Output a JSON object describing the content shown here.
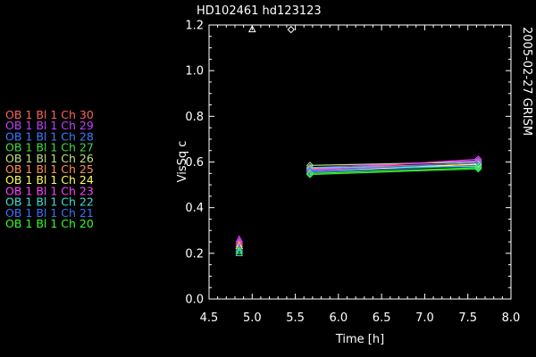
{
  "chart_data": {
    "type": "scatter",
    "title": "HD102461 hd123123",
    "xlabel": "Time [h]",
    "ylabel": "VisSq c",
    "side_label": "2005-02-27 GRISM",
    "xlim": [
      4.5,
      8.0
    ],
    "ylim": [
      0.0,
      1.2
    ],
    "xticks": [
      "4.5",
      "5.0",
      "5.5",
      "6.0",
      "6.5",
      "7.0",
      "7.5",
      "8.0"
    ],
    "yticks": [
      "0.0",
      "0.2",
      "0.4",
      "0.6",
      "0.8",
      "1.0",
      "1.2"
    ],
    "grid": false,
    "legend_position": "left",
    "calibrators": [
      {
        "x": 5.0,
        "y": 1.18,
        "marker": "triangle"
      },
      {
        "x": 5.45,
        "y": 1.18,
        "marker": "diamond"
      }
    ],
    "series": [
      {
        "name": "OB 1 Bl 1 Ch 30",
        "color": "#ff6060",
        "x": [
          4.85,
          5.67,
          7.62
        ],
        "y": [
          0.22,
          0.565,
          0.59
        ]
      },
      {
        "name": "OB 1 Bl 1 Ch 29",
        "color": "#c040ff",
        "x": [
          4.85,
          5.67,
          7.62
        ],
        "y": [
          0.26,
          0.575,
          0.605
        ]
      },
      {
        "name": "OB 1 Bl 1 Ch 28",
        "color": "#3c7cff",
        "x": [
          4.85,
          5.67,
          7.62
        ],
        "y": [
          0.23,
          0.555,
          0.585
        ]
      },
      {
        "name": "OB 1 Bl 1 Ch 27",
        "color": "#40e040",
        "x": [
          4.85,
          5.67,
          7.62
        ],
        "y": [
          0.21,
          0.545,
          0.57
        ]
      },
      {
        "name": "OB 1 Bl 1 Ch 26",
        "color": "#c0e080",
        "x": [
          4.85,
          5.67,
          7.62
        ],
        "y": [
          0.22,
          0.585,
          0.6
        ]
      },
      {
        "name": "OB 1 Bl 1 Ch 25",
        "color": "#ff9050",
        "x": [
          4.85,
          5.67,
          7.62
        ],
        "y": [
          0.24,
          0.57,
          0.595
        ]
      },
      {
        "name": "OB 1 Bl 1 Ch 24",
        "color": "#ffff60",
        "x": [
          4.85,
          5.67,
          7.62
        ],
        "y": [
          0.23,
          0.56,
          0.59
        ]
      },
      {
        "name": "OB 1 Bl 1 Ch 23",
        "color": "#ff40ff",
        "x": [
          4.85,
          5.67,
          7.62
        ],
        "y": [
          0.25,
          0.565,
          0.612
        ]
      },
      {
        "name": "OB 1 Bl 1 Ch 22",
        "color": "#40e0d0",
        "x": [
          4.85,
          5.67,
          7.62
        ],
        "y": [
          0.2,
          0.575,
          0.58
        ]
      },
      {
        "name": "OB 1 Bl 1 Ch 21",
        "color": "#4070ff",
        "x": [
          4.85,
          5.67,
          7.62
        ],
        "y": [
          0.22,
          0.56,
          0.598
        ]
      },
      {
        "name": "OB 1 Bl 1 Ch 20",
        "color": "#30ff30",
        "x": [
          4.85,
          5.67,
          7.62
        ],
        "y": [
          0.21,
          0.55,
          0.575
        ]
      }
    ]
  }
}
